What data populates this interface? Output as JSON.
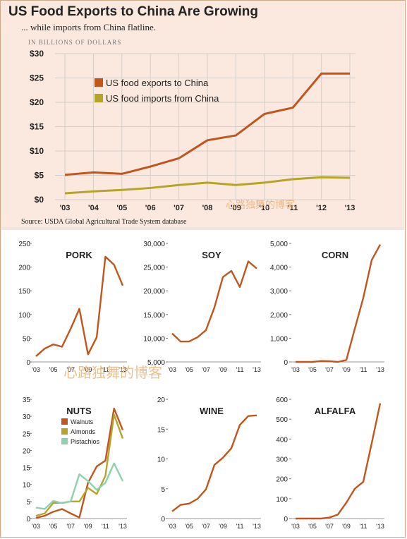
{
  "header": {
    "title": "US Food Exports to China Are Growing",
    "subtitle": "... while imports from China flatline.",
    "unit": "IN BILLIONS OF DOLLARS",
    "source": "Source: USDA Global Agricultural Trade System database"
  },
  "watermark": "心路独舞的博客",
  "colors": {
    "exports": "#c0561d",
    "imports": "#b5a42a",
    "walnuts": "#c0561d",
    "almonds": "#b5a42a",
    "pistachios": "#8fd0ae",
    "grid": "#d4cdc8"
  },
  "chart_data": [
    {
      "type": "line",
      "x": [
        "'03",
        "'04",
        "'05",
        "'06",
        "'07",
        "'08",
        "'09",
        "'10",
        "'11",
        "'12",
        "'13"
      ],
      "ylim": [
        0,
        30
      ],
      "yticks": [
        "$0",
        "$5",
        "$10",
        "$15",
        "$20",
        "$25",
        "$30"
      ],
      "grid": true,
      "legend": "top-left",
      "series": [
        {
          "name": "US food exports to China",
          "color": "#c0561d",
          "values": [
            5.1,
            5.6,
            5.3,
            6.8,
            8.5,
            12.2,
            13.2,
            17.6,
            18.9,
            25.9,
            25.9
          ]
        },
        {
          "name": "US food imports from China",
          "color": "#b5a42a",
          "values": [
            1.3,
            1.7,
            2.0,
            2.4,
            3.0,
            3.5,
            3.0,
            3.5,
            4.2,
            4.6,
            4.5
          ]
        }
      ]
    },
    {
      "type": "line",
      "title": "PORK",
      "ylim": [
        0,
        250
      ],
      "yticks": [
        0,
        50,
        100,
        150,
        200,
        250
      ],
      "xticks": [
        "'03",
        "'05",
        "'07",
        "'09",
        "'11",
        "'13"
      ],
      "x": [
        2003,
        2004,
        2005,
        2006,
        2007,
        2008,
        2009,
        2010,
        2011,
        2012,
        2013
      ],
      "series": [
        {
          "color": "#c0561d",
          "values": [
            12,
            28,
            37,
            32,
            70,
            112,
            16,
            52,
            222,
            205,
            161
          ]
        }
      ]
    },
    {
      "type": "line",
      "title": "SOY",
      "ylim": [
        5000,
        30000
      ],
      "yticks": [
        "5,000",
        "10,000",
        "15,000",
        "20,000",
        "25,000",
        "30,000"
      ],
      "xticks": [
        "'03",
        "'05",
        "'07",
        "'09",
        "'11",
        "'13"
      ],
      "x": [
        2003,
        2004,
        2005,
        2006,
        2007,
        2008,
        2009,
        2010,
        2011,
        2012,
        2013
      ],
      "series": [
        {
          "color": "#c0561d",
          "values": [
            11000,
            9300,
            9300,
            10200,
            11700,
            16500,
            22900,
            24200,
            20800,
            26200,
            24700
          ]
        }
      ]
    },
    {
      "type": "line",
      "title": "CORN",
      "ylim": [
        0,
        5000
      ],
      "yticks": [
        "0",
        "1,000",
        "2,000",
        "3,000",
        "4,000",
        "5,000"
      ],
      "xticks": [
        "'03",
        "'05",
        "'07",
        "'09",
        "'11",
        "'13"
      ],
      "x": [
        2003,
        2004,
        2005,
        2006,
        2007,
        2008,
        2009,
        2010,
        2011,
        2012,
        2013
      ],
      "series": [
        {
          "color": "#c0561d",
          "values": [
            0,
            0,
            0,
            40,
            30,
            0,
            80,
            1400,
            2700,
            4300,
            4950
          ]
        }
      ]
    },
    {
      "type": "line",
      "title": "NUTS",
      "ylim": [
        0,
        35
      ],
      "yticks": [
        0,
        5,
        10,
        15,
        20,
        25,
        30,
        35
      ],
      "xticks": [
        "'03",
        "'05",
        "'07",
        "'09",
        "'11",
        "'13"
      ],
      "x": [
        2003,
        2004,
        2005,
        2006,
        2007,
        2008,
        2009,
        2010,
        2011,
        2012,
        2013
      ],
      "legend": "top-left",
      "series": [
        {
          "name": "Walnuts",
          "color": "#c0561d",
          "values": [
            0.2,
            0.8,
            2.0,
            2.8,
            1.5,
            0.3,
            10.5,
            15.3,
            17.0,
            32.3,
            26.0
          ]
        },
        {
          "name": "Almonds",
          "color": "#b5a42a",
          "values": [
            0.8,
            1.5,
            4.6,
            4.6,
            5.0,
            5.0,
            9.0,
            7.2,
            12.5,
            30.5,
            23.5
          ]
        },
        {
          "name": "Pistachios",
          "color": "#8fd0ae",
          "values": [
            3.2,
            2.8,
            5.2,
            4.5,
            5.0,
            13.0,
            11.0,
            8.4,
            10.5,
            16.2,
            11.0
          ]
        }
      ]
    },
    {
      "type": "line",
      "title": "WINE",
      "ylim": [
        0,
        20
      ],
      "yticks": [
        0,
        5,
        10,
        15,
        20
      ],
      "xticks": [
        "'03",
        "'05",
        "'07",
        "'09",
        "'11",
        "'13"
      ],
      "x": [
        2003,
        2004,
        2005,
        2006,
        2007,
        2008,
        2009,
        2010,
        2011,
        2012,
        2013
      ],
      "series": [
        {
          "color": "#c0561d",
          "values": [
            1.2,
            2.3,
            2.5,
            3.3,
            4.9,
            9.0,
            10.2,
            11.8,
            15.7,
            17.2,
            17.3
          ]
        }
      ]
    },
    {
      "type": "line",
      "title": "ALFALFA",
      "ylim": [
        0,
        600
      ],
      "yticks": [
        0,
        100,
        200,
        300,
        400,
        500,
        600
      ],
      "xticks": [
        "'03",
        "'05",
        "'07",
        "'09",
        "'11",
        "'13"
      ],
      "x": [
        2003,
        2004,
        2005,
        2006,
        2007,
        2008,
        2009,
        2010,
        2011,
        2012,
        2013
      ],
      "series": [
        {
          "color": "#c0561d",
          "values": [
            0,
            0,
            0,
            0,
            5,
            20,
            80,
            150,
            185,
            380,
            580
          ]
        }
      ]
    }
  ]
}
